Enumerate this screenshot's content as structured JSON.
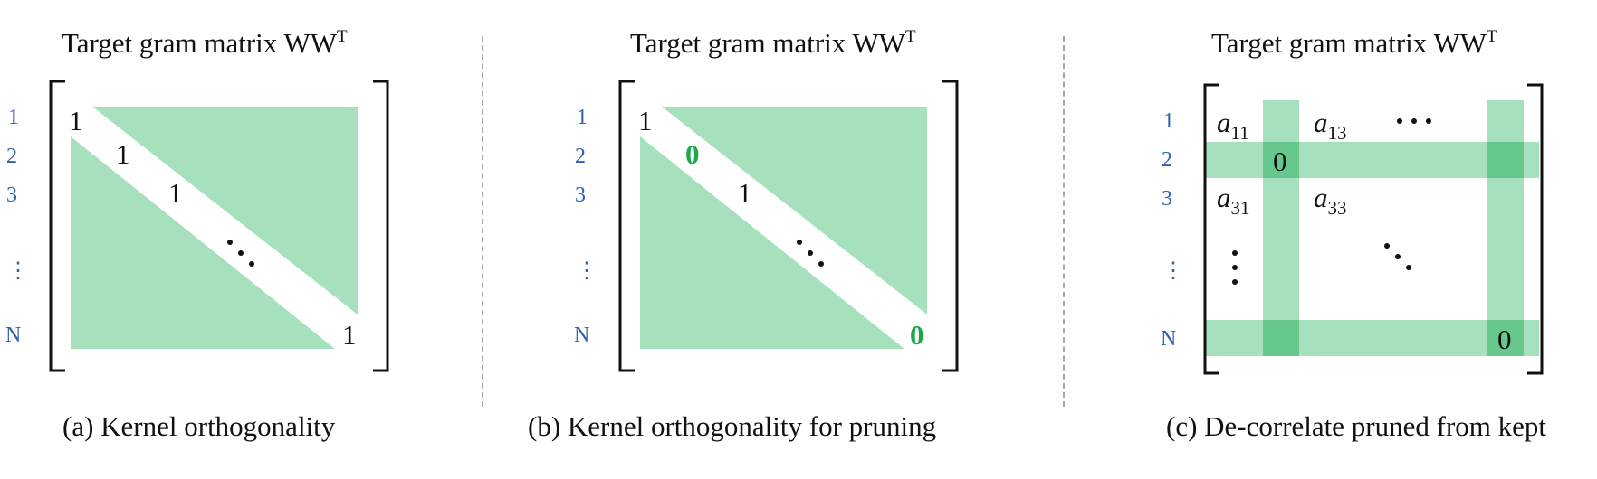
{
  "panels": [
    {
      "title": "Target gram matrix WW",
      "title_sup": "T",
      "caption": "(a) Kernel orthogonality",
      "row_labels": [
        "1",
        "2",
        "3",
        "⋮",
        "N"
      ],
      "diag_values": [
        "1",
        "1",
        "1",
        "1"
      ]
    },
    {
      "title": "Target gram matrix WW",
      "title_sup": "T",
      "caption": "(b) Kernel orthogonality for pruning",
      "row_labels": [
        "1",
        "2",
        "3",
        "⋮",
        "N"
      ],
      "diag_values": [
        "1",
        "0",
        "1",
        "0"
      ]
    },
    {
      "title": "Target gram matrix WW",
      "title_sup": "T",
      "caption": "(c) De-correlate pruned from kept",
      "row_labels": [
        "1",
        "2",
        "3",
        "⋮",
        "N"
      ],
      "entries": {
        "a11": {
          "base": "a",
          "sub": "11"
        },
        "a13": {
          "base": "a",
          "sub": "13"
        },
        "a31": {
          "base": "a",
          "sub": "31"
        },
        "a33": {
          "base": "a",
          "sub": "33"
        },
        "zero_1": "0",
        "zero_2": "0"
      }
    }
  ],
  "colors": {
    "fill": "#a6e0bc",
    "fill_dark": "#66c88d",
    "row_label": "#2f5fb0",
    "zero_highlight": "#1fa84a",
    "divider": "#a8a8a8"
  }
}
